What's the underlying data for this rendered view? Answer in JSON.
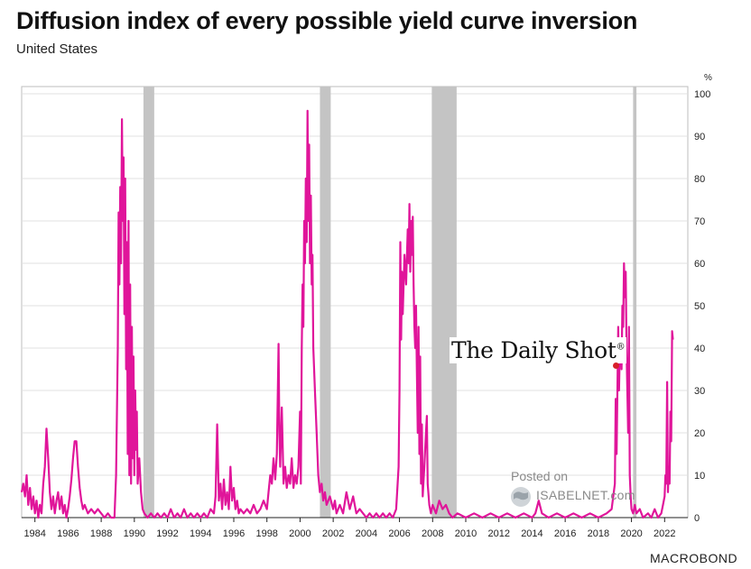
{
  "header": {
    "title": "Diffusion index of every possible yield curve inversion",
    "subtitle": "United States"
  },
  "watermarks": {
    "daily_shot": "The Daily Shot",
    "daily_shot_mark": "®",
    "posted_on": "Posted on",
    "isabelnet": "ISABELNET.com",
    "source": "MACROBOND"
  },
  "colors": {
    "series": "#e0159a",
    "recession": "#c4c4c4",
    "grid": "#e0e0e0",
    "axis": "#222222"
  },
  "chart_data": {
    "type": "line",
    "title": "Diffusion index of every possible yield curve inversion",
    "subtitle": "United States",
    "yunit": "%",
    "ylim": [
      0,
      100
    ],
    "yticks": [
      0,
      10,
      20,
      30,
      40,
      50,
      60,
      70,
      80,
      90,
      100
    ],
    "xlim": [
      1983.2,
      2023.4
    ],
    "xticks": [
      "1984",
      "1986",
      "1988",
      "1990",
      "1992",
      "1994",
      "1996",
      "1998",
      "2000",
      "2002",
      "2004",
      "2006",
      "2008",
      "2010",
      "2012",
      "2014",
      "2016",
      "2018",
      "2020",
      "2022"
    ],
    "grid": true,
    "recessions": [
      [
        1990.55,
        1991.2
      ],
      [
        2001.2,
        2001.85
      ],
      [
        2007.95,
        2009.45
      ],
      [
        2020.1,
        2020.3
      ]
    ],
    "series": [
      {
        "points": [
          [
            1983.2,
            6
          ],
          [
            1983.3,
            8
          ],
          [
            1983.4,
            5
          ],
          [
            1983.5,
            10
          ],
          [
            1983.6,
            3
          ],
          [
            1983.7,
            7
          ],
          [
            1983.8,
            2
          ],
          [
            1983.9,
            5
          ],
          [
            1984.0,
            1
          ],
          [
            1984.1,
            4
          ],
          [
            1984.2,
            0
          ],
          [
            1984.3,
            3
          ],
          [
            1984.4,
            1
          ],
          [
            1984.5,
            8
          ],
          [
            1984.6,
            12
          ],
          [
            1984.7,
            21
          ],
          [
            1984.8,
            14
          ],
          [
            1984.9,
            6
          ],
          [
            1985.0,
            2
          ],
          [
            1985.1,
            5
          ],
          [
            1985.2,
            1
          ],
          [
            1985.3,
            4
          ],
          [
            1985.4,
            6
          ],
          [
            1985.5,
            2
          ],
          [
            1985.6,
            5
          ],
          [
            1985.7,
            1
          ],
          [
            1985.8,
            3
          ],
          [
            1985.9,
            0
          ],
          [
            1986.0,
            2
          ],
          [
            1986.1,
            5
          ],
          [
            1986.2,
            9
          ],
          [
            1986.3,
            14
          ],
          [
            1986.4,
            18
          ],
          [
            1986.5,
            18
          ],
          [
            1986.6,
            12
          ],
          [
            1986.7,
            7
          ],
          [
            1986.8,
            4
          ],
          [
            1986.9,
            2
          ],
          [
            1987.0,
            3
          ],
          [
            1987.2,
            1
          ],
          [
            1987.4,
            2
          ],
          [
            1987.6,
            1
          ],
          [
            1987.8,
            2
          ],
          [
            1988.0,
            1
          ],
          [
            1988.2,
            0
          ],
          [
            1988.4,
            1
          ],
          [
            1988.6,
            0
          ],
          [
            1988.8,
            0
          ],
          [
            1988.9,
            10
          ],
          [
            1989.0,
            40
          ],
          [
            1989.05,
            72
          ],
          [
            1989.1,
            55
          ],
          [
            1989.15,
            78
          ],
          [
            1989.2,
            60
          ],
          [
            1989.25,
            94
          ],
          [
            1989.3,
            70
          ],
          [
            1989.35,
            85
          ],
          [
            1989.4,
            48
          ],
          [
            1989.45,
            80
          ],
          [
            1989.5,
            35
          ],
          [
            1989.55,
            65
          ],
          [
            1989.6,
            15
          ],
          [
            1989.65,
            70
          ],
          [
            1989.7,
            10
          ],
          [
            1989.75,
            55
          ],
          [
            1989.8,
            8
          ],
          [
            1989.85,
            45
          ],
          [
            1989.9,
            14
          ],
          [
            1989.95,
            38
          ],
          [
            1990.0,
            10
          ],
          [
            1990.05,
            30
          ],
          [
            1990.1,
            16
          ],
          [
            1990.15,
            25
          ],
          [
            1990.2,
            8
          ],
          [
            1990.3,
            14
          ],
          [
            1990.4,
            6
          ],
          [
            1990.5,
            2
          ],
          [
            1990.6,
            1
          ],
          [
            1990.8,
            0
          ],
          [
            1991.0,
            1
          ],
          [
            1991.2,
            0
          ],
          [
            1991.4,
            1
          ],
          [
            1991.6,
            0
          ],
          [
            1991.8,
            1
          ],
          [
            1992.0,
            0
          ],
          [
            1992.2,
            2
          ],
          [
            1992.4,
            0
          ],
          [
            1992.6,
            1
          ],
          [
            1992.8,
            0
          ],
          [
            1993.0,
            2
          ],
          [
            1993.2,
            0
          ],
          [
            1993.4,
            1
          ],
          [
            1993.6,
            0
          ],
          [
            1993.8,
            1
          ],
          [
            1994.0,
            0
          ],
          [
            1994.2,
            1
          ],
          [
            1994.4,
            0
          ],
          [
            1994.6,
            2
          ],
          [
            1994.8,
            1
          ],
          [
            1994.9,
            5
          ],
          [
            1995.0,
            22
          ],
          [
            1995.1,
            4
          ],
          [
            1995.2,
            8
          ],
          [
            1995.3,
            2
          ],
          [
            1995.4,
            9
          ],
          [
            1995.5,
            3
          ],
          [
            1995.6,
            6
          ],
          [
            1995.7,
            2
          ],
          [
            1995.8,
            12
          ],
          [
            1995.9,
            4
          ],
          [
            1996.0,
            7
          ],
          [
            1996.1,
            2
          ],
          [
            1996.2,
            4
          ],
          [
            1996.3,
            1
          ],
          [
            1996.4,
            2
          ],
          [
            1996.6,
            1
          ],
          [
            1996.8,
            2
          ],
          [
            1997.0,
            1
          ],
          [
            1997.2,
            3
          ],
          [
            1997.4,
            1
          ],
          [
            1997.6,
            2
          ],
          [
            1997.8,
            4
          ],
          [
            1998.0,
            2
          ],
          [
            1998.1,
            6
          ],
          [
            1998.2,
            10
          ],
          [
            1998.3,
            8
          ],
          [
            1998.4,
            14
          ],
          [
            1998.5,
            9
          ],
          [
            1998.6,
            15
          ],
          [
            1998.7,
            41
          ],
          [
            1998.75,
            20
          ],
          [
            1998.8,
            12
          ],
          [
            1998.9,
            26
          ],
          [
            1999.0,
            8
          ],
          [
            1999.1,
            12
          ],
          [
            1999.2,
            7
          ],
          [
            1999.3,
            10
          ],
          [
            1999.4,
            8
          ],
          [
            1999.5,
            14
          ],
          [
            1999.6,
            7
          ],
          [
            1999.7,
            10
          ],
          [
            1999.8,
            8
          ],
          [
            1999.9,
            12
          ],
          [
            2000.0,
            25
          ],
          [
            2000.05,
            8
          ],
          [
            2000.1,
            40
          ],
          [
            2000.15,
            55
          ],
          [
            2000.2,
            45
          ],
          [
            2000.25,
            70
          ],
          [
            2000.3,
            60
          ],
          [
            2000.35,
            80
          ],
          [
            2000.4,
            65
          ],
          [
            2000.45,
            96
          ],
          [
            2000.5,
            70
          ],
          [
            2000.55,
            88
          ],
          [
            2000.6,
            60
          ],
          [
            2000.65,
            76
          ],
          [
            2000.7,
            55
          ],
          [
            2000.75,
            62
          ],
          [
            2000.8,
            40
          ],
          [
            2000.9,
            30
          ],
          [
            2001.0,
            20
          ],
          [
            2001.1,
            10
          ],
          [
            2001.2,
            6
          ],
          [
            2001.3,
            8
          ],
          [
            2001.4,
            4
          ],
          [
            2001.5,
            6
          ],
          [
            2001.6,
            3
          ],
          [
            2001.8,
            5
          ],
          [
            2002.0,
            2
          ],
          [
            2002.1,
            4
          ],
          [
            2002.2,
            1
          ],
          [
            2002.4,
            3
          ],
          [
            2002.6,
            1
          ],
          [
            2002.8,
            6
          ],
          [
            2003.0,
            2
          ],
          [
            2003.2,
            5
          ],
          [
            2003.4,
            1
          ],
          [
            2003.6,
            2
          ],
          [
            2003.8,
            1
          ],
          [
            2004.0,
            0
          ],
          [
            2004.2,
            1
          ],
          [
            2004.4,
            0
          ],
          [
            2004.6,
            1
          ],
          [
            2004.8,
            0
          ],
          [
            2005.0,
            1
          ],
          [
            2005.2,
            0
          ],
          [
            2005.4,
            1
          ],
          [
            2005.6,
            0
          ],
          [
            2005.8,
            2
          ],
          [
            2005.95,
            12
          ],
          [
            2006.0,
            30
          ],
          [
            2006.05,
            65
          ],
          [
            2006.1,
            42
          ],
          [
            2006.15,
            58
          ],
          [
            2006.2,
            48
          ],
          [
            2006.3,
            62
          ],
          [
            2006.4,
            55
          ],
          [
            2006.5,
            68
          ],
          [
            2006.55,
            60
          ],
          [
            2006.6,
            74
          ],
          [
            2006.65,
            58
          ],
          [
            2006.7,
            70
          ],
          [
            2006.75,
            62
          ],
          [
            2006.8,
            71
          ],
          [
            2006.85,
            55
          ],
          [
            2006.9,
            45
          ],
          [
            2006.95,
            40
          ],
          [
            2007.0,
            50
          ],
          [
            2007.05,
            35
          ],
          [
            2007.1,
            20
          ],
          [
            2007.15,
            45
          ],
          [
            2007.2,
            15
          ],
          [
            2007.25,
            38
          ],
          [
            2007.3,
            8
          ],
          [
            2007.35,
            22
          ],
          [
            2007.4,
            5
          ],
          [
            2007.5,
            12
          ],
          [
            2007.6,
            20
          ],
          [
            2007.65,
            24
          ],
          [
            2007.7,
            8
          ],
          [
            2007.8,
            3
          ],
          [
            2007.9,
            1
          ],
          [
            2008.0,
            3
          ],
          [
            2008.2,
            1
          ],
          [
            2008.4,
            4
          ],
          [
            2008.6,
            2
          ],
          [
            2008.8,
            3
          ],
          [
            2009.0,
            1
          ],
          [
            2009.2,
            0
          ],
          [
            2009.5,
            1
          ],
          [
            2010.0,
            0
          ],
          [
            2010.5,
            1
          ],
          [
            2011.0,
            0
          ],
          [
            2011.5,
            1
          ],
          [
            2012.0,
            0
          ],
          [
            2012.5,
            1
          ],
          [
            2013.0,
            0
          ],
          [
            2013.5,
            1
          ],
          [
            2014.0,
            0
          ],
          [
            2014.2,
            1
          ],
          [
            2014.4,
            4
          ],
          [
            2014.6,
            1
          ],
          [
            2015.0,
            0
          ],
          [
            2015.5,
            1
          ],
          [
            2016.0,
            0
          ],
          [
            2016.5,
            1
          ],
          [
            2017.0,
            0
          ],
          [
            2017.5,
            1
          ],
          [
            2018.0,
            0
          ],
          [
            2018.5,
            1
          ],
          [
            2018.8,
            2
          ],
          [
            2019.0,
            8
          ],
          [
            2019.05,
            28
          ],
          [
            2019.1,
            15
          ],
          [
            2019.2,
            45
          ],
          [
            2019.25,
            30
          ],
          [
            2019.3,
            40
          ],
          [
            2019.35,
            42
          ],
          [
            2019.4,
            35
          ],
          [
            2019.45,
            50
          ],
          [
            2019.5,
            45
          ],
          [
            2019.55,
            60
          ],
          [
            2019.6,
            52
          ],
          [
            2019.65,
            58
          ],
          [
            2019.7,
            40
          ],
          [
            2019.75,
            30
          ],
          [
            2019.8,
            20
          ],
          [
            2019.85,
            45
          ],
          [
            2019.9,
            10
          ],
          [
            2019.95,
            5
          ],
          [
            2020.0,
            2
          ],
          [
            2020.1,
            1
          ],
          [
            2020.2,
            3
          ],
          [
            2020.3,
            1
          ],
          [
            2020.5,
            2
          ],
          [
            2020.7,
            0
          ],
          [
            2021.0,
            1
          ],
          [
            2021.2,
            0
          ],
          [
            2021.4,
            2
          ],
          [
            2021.6,
            0
          ],
          [
            2021.8,
            1
          ],
          [
            2021.9,
            3
          ],
          [
            2022.0,
            5
          ],
          [
            2022.05,
            10
          ],
          [
            2022.1,
            8
          ],
          [
            2022.15,
            32
          ],
          [
            2022.2,
            6
          ],
          [
            2022.25,
            12
          ],
          [
            2022.3,
            8
          ],
          [
            2022.35,
            25
          ],
          [
            2022.4,
            18
          ],
          [
            2022.45,
            44
          ],
          [
            2022.5,
            42
          ]
        ]
      }
    ]
  }
}
